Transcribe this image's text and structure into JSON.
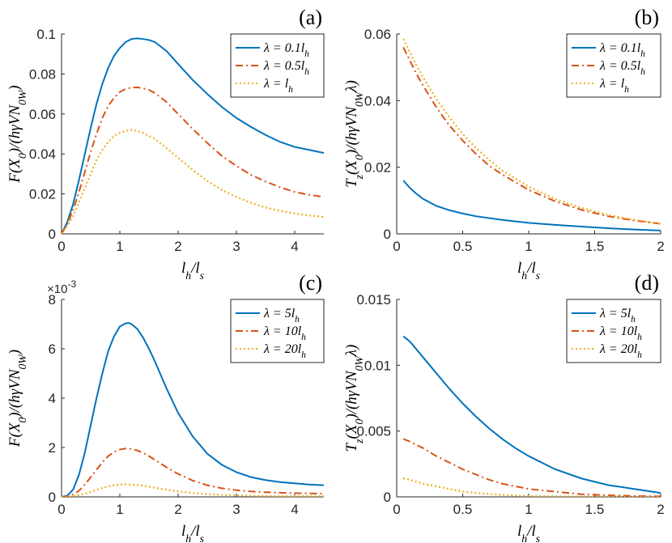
{
  "colors": {
    "blue": "#0072BD",
    "orange": "#D95319",
    "yellow": "#EDB120",
    "axis": "#262626"
  },
  "chart_data": [
    {
      "panel": "(a)",
      "type": "line",
      "xlabel": "l_h/l_s",
      "ylabel": "F(X_0)/(hγVN_0W)",
      "xlim": [
        0,
        4.5
      ],
      "ylim": [
        0,
        0.1
      ],
      "xticks": [
        "0",
        "1",
        "2",
        "3",
        "4"
      ],
      "yticks": [
        "0",
        "0.02",
        "0.04",
        "0.06",
        "0.08",
        "0.1"
      ],
      "exponent": "",
      "legend_position": "top-right",
      "series": [
        {
          "name": "λ = 0.1l_h",
          "color": "#0072BD",
          "dash": "solid",
          "x": [
            0,
            0.1,
            0.2,
            0.3,
            0.4,
            0.5,
            0.6,
            0.7,
            0.8,
            0.9,
            1.0,
            1.1,
            1.2,
            1.3,
            1.4,
            1.5,
            1.6,
            1.8,
            2.0,
            2.25,
            2.5,
            2.75,
            3.0,
            3.25,
            3.5,
            3.75,
            4.0,
            4.25,
            4.5
          ],
          "y": [
            0,
            0.006,
            0.015,
            0.027,
            0.04,
            0.053,
            0.065,
            0.075,
            0.083,
            0.089,
            0.093,
            0.096,
            0.0975,
            0.0978,
            0.0975,
            0.097,
            0.096,
            0.0915,
            0.085,
            0.077,
            0.07,
            0.0635,
            0.058,
            0.0535,
            0.0495,
            0.046,
            0.0435,
            0.042,
            0.0405
          ]
        },
        {
          "name": "λ = 0.5l_h",
          "color": "#D95319",
          "dash": "dashdot",
          "x": [
            0,
            0.1,
            0.2,
            0.3,
            0.4,
            0.5,
            0.6,
            0.7,
            0.8,
            0.9,
            1.0,
            1.1,
            1.2,
            1.3,
            1.4,
            1.5,
            1.6,
            1.8,
            2.0,
            2.25,
            2.5,
            2.75,
            3.0,
            3.25,
            3.5,
            3.75,
            4.0,
            4.25,
            4.5
          ],
          "y": [
            0,
            0.005,
            0.012,
            0.021,
            0.031,
            0.041,
            0.05,
            0.058,
            0.064,
            0.068,
            0.071,
            0.0725,
            0.0732,
            0.0733,
            0.0728,
            0.072,
            0.0705,
            0.066,
            0.06,
            0.0525,
            0.0455,
            0.039,
            0.034,
            0.0295,
            0.0262,
            0.0233,
            0.021,
            0.0195,
            0.0185
          ]
        },
        {
          "name": "λ = l_h",
          "color": "#EDB120",
          "dash": "dotted",
          "x": [
            0,
            0.1,
            0.2,
            0.3,
            0.4,
            0.5,
            0.6,
            0.7,
            0.8,
            0.9,
            1.0,
            1.1,
            1.2,
            1.3,
            1.4,
            1.5,
            1.6,
            1.8,
            2.0,
            2.25,
            2.5,
            2.75,
            3.0,
            3.25,
            3.5,
            3.75,
            4.0,
            4.25,
            4.5
          ],
          "y": [
            0,
            0.004,
            0.009,
            0.016,
            0.023,
            0.03,
            0.037,
            0.042,
            0.046,
            0.049,
            0.0505,
            0.0515,
            0.052,
            0.0515,
            0.0505,
            0.049,
            0.0475,
            0.043,
            0.038,
            0.032,
            0.0265,
            0.022,
            0.0185,
            0.0155,
            0.0132,
            0.0115,
            0.0102,
            0.0092,
            0.0085
          ]
        }
      ]
    },
    {
      "panel": "(b)",
      "type": "line",
      "xlabel": "l_h/l_s",
      "ylabel": "T_z(X_0)/(hγVN_0Wλ)",
      "xlim": [
        0,
        2
      ],
      "ylim": [
        0,
        0.06
      ],
      "xticks": [
        "0",
        "0.5",
        "1",
        "1.5",
        "2"
      ],
      "yticks": [
        "0",
        "0.02",
        "0.04",
        "0.06"
      ],
      "exponent": "",
      "legend_position": "top-right",
      "series": [
        {
          "name": "λ = 0.1l_h",
          "color": "#0072BD",
          "dash": "solid",
          "x": [
            0.05,
            0.1,
            0.15,
            0.2,
            0.3,
            0.4,
            0.5,
            0.6,
            0.8,
            1.0,
            1.2,
            1.4,
            1.6,
            1.8,
            2.0
          ],
          "y": [
            0.016,
            0.0138,
            0.012,
            0.0105,
            0.0084,
            0.0071,
            0.0061,
            0.0053,
            0.0042,
            0.0033,
            0.0027,
            0.0022,
            0.0017,
            0.0013,
            0.001
          ]
        },
        {
          "name": "λ = 0.5l_h",
          "color": "#D95319",
          "dash": "dashdot",
          "x": [
            0.05,
            0.1,
            0.15,
            0.2,
            0.3,
            0.4,
            0.5,
            0.6,
            0.7,
            0.8,
            1.0,
            1.2,
            1.4,
            1.6,
            1.8,
            2.0
          ],
          "y": [
            0.056,
            0.052,
            0.048,
            0.0445,
            0.038,
            0.0325,
            0.028,
            0.024,
            0.0205,
            0.0178,
            0.0132,
            0.0098,
            0.0072,
            0.0053,
            0.004,
            0.003
          ]
        },
        {
          "name": "λ = l_h",
          "color": "#EDB120",
          "dash": "dotted",
          "x": [
            0.05,
            0.1,
            0.15,
            0.2,
            0.3,
            0.4,
            0.5,
            0.6,
            0.7,
            0.8,
            1.0,
            1.2,
            1.4,
            1.6,
            1.8,
            2.0
          ],
          "y": [
            0.0585,
            0.0545,
            0.0505,
            0.047,
            0.0405,
            0.035,
            0.03,
            0.0258,
            0.0222,
            0.019,
            0.0142,
            0.0105,
            0.0078,
            0.0057,
            0.0042,
            0.0031
          ]
        }
      ]
    },
    {
      "panel": "(c)",
      "type": "line",
      "xlabel": "l_h/l_s",
      "ylabel": "F(X_0)/(hγVN_0W)",
      "xlim": [
        0,
        4.5
      ],
      "ylim": [
        0,
        8
      ],
      "xticks": [
        "0",
        "1",
        "2",
        "3",
        "4"
      ],
      "yticks": [
        "0",
        "2",
        "4",
        "6",
        "8"
      ],
      "exponent": "×10^{-3}",
      "legend_position": "top-right",
      "series": [
        {
          "name": "λ = 5l_h",
          "color": "#0072BD",
          "dash": "solid",
          "x": [
            0,
            0.1,
            0.2,
            0.3,
            0.4,
            0.5,
            0.6,
            0.7,
            0.8,
            0.9,
            1.0,
            1.1,
            1.15,
            1.2,
            1.3,
            1.4,
            1.5,
            1.6,
            1.8,
            2.0,
            2.25,
            2.5,
            2.75,
            3.0,
            3.25,
            3.5,
            3.75,
            4.0,
            4.25,
            4.5
          ],
          "y": [
            0,
            0.05,
            0.3,
            0.9,
            1.8,
            2.9,
            4.0,
            5.0,
            5.9,
            6.5,
            6.9,
            7.03,
            7.05,
            7.0,
            6.8,
            6.45,
            6.0,
            5.5,
            4.4,
            3.4,
            2.45,
            1.75,
            1.3,
            1.0,
            0.8,
            0.68,
            0.6,
            0.55,
            0.5,
            0.47
          ]
        },
        {
          "name": "λ = 10l_h",
          "color": "#D95319",
          "dash": "dashdot",
          "x": [
            0,
            0.1,
            0.2,
            0.3,
            0.4,
            0.5,
            0.6,
            0.7,
            0.8,
            0.9,
            1.0,
            1.1,
            1.2,
            1.3,
            1.4,
            1.5,
            1.6,
            1.8,
            2.0,
            2.25,
            2.5,
            2.75,
            3.0,
            3.25,
            3.5,
            3.75,
            4.0,
            4.25,
            4.5
          ],
          "y": [
            0,
            0.02,
            0.1,
            0.25,
            0.5,
            0.8,
            1.1,
            1.4,
            1.65,
            1.82,
            1.92,
            1.96,
            1.94,
            1.88,
            1.78,
            1.65,
            1.5,
            1.2,
            0.93,
            0.66,
            0.47,
            0.35,
            0.27,
            0.22,
            0.19,
            0.17,
            0.15,
            0.14,
            0.13
          ]
        },
        {
          "name": "λ = 20l_h",
          "color": "#EDB120",
          "dash": "dotted",
          "x": [
            0,
            0.1,
            0.2,
            0.3,
            0.4,
            0.5,
            0.6,
            0.7,
            0.8,
            0.9,
            1.0,
            1.1,
            1.2,
            1.3,
            1.4,
            1.5,
            1.6,
            1.8,
            2.0,
            2.25,
            2.5,
            2.75,
            3.0,
            3.25,
            3.5,
            3.75,
            4.0,
            4.25,
            4.5
          ],
          "y": [
            0,
            0.005,
            0.03,
            0.07,
            0.13,
            0.2,
            0.28,
            0.36,
            0.42,
            0.47,
            0.5,
            0.51,
            0.5,
            0.48,
            0.45,
            0.41,
            0.37,
            0.29,
            0.22,
            0.155,
            0.11,
            0.08,
            0.06,
            0.048,
            0.04,
            0.034,
            0.03,
            0.027,
            0.025
          ]
        }
      ]
    },
    {
      "panel": "(d)",
      "type": "line",
      "xlabel": "l_h/l_s",
      "ylabel": "T_z(X_0)/(hγVN_0Wλ)",
      "xlim": [
        0,
        2
      ],
      "ylim": [
        0,
        0.015
      ],
      "xticks": [
        "0",
        "0.5",
        "1",
        "1.5",
        "2"
      ],
      "yticks": [
        "0",
        "0.005",
        "0.01",
        "0.015"
      ],
      "exponent": "",
      "legend_position": "top-right",
      "series": [
        {
          "name": "λ = 5l_h",
          "color": "#0072BD",
          "dash": "solid",
          "x": [
            0.05,
            0.1,
            0.2,
            0.3,
            0.4,
            0.5,
            0.6,
            0.7,
            0.8,
            0.9,
            1.0,
            1.2,
            1.4,
            1.6,
            1.8,
            2.0
          ],
          "y": [
            0.0122,
            0.0118,
            0.0106,
            0.0094,
            0.0082,
            0.0071,
            0.0061,
            0.0052,
            0.0044,
            0.0037,
            0.0031,
            0.0021,
            0.0014,
            0.0009,
            0.0006,
            0.0003
          ]
        },
        {
          "name": "λ = 10l_h",
          "color": "#D95319",
          "dash": "dashdot",
          "x": [
            0.05,
            0.1,
            0.2,
            0.3,
            0.4,
            0.5,
            0.6,
            0.7,
            0.8,
            0.9,
            1.0,
            1.2,
            1.4,
            1.6,
            1.8,
            2.0
          ],
          "y": [
            0.0044,
            0.0042,
            0.0037,
            0.0031,
            0.0026,
            0.0021,
            0.0017,
            0.0013,
            0.001,
            0.0008,
            0.0006,
            0.0004,
            0.0002,
            0.00012,
            7e-05,
            4e-05
          ]
        },
        {
          "name": "λ = 20l_h",
          "color": "#EDB120",
          "dash": "dotted",
          "x": [
            0.05,
            0.1,
            0.2,
            0.3,
            0.4,
            0.5,
            0.6,
            0.7,
            0.8,
            0.9,
            1.0,
            1.2,
            1.4,
            1.6,
            1.8,
            2.0
          ],
          "y": [
            0.0014,
            0.0013,
            0.001,
            0.0008,
            0.0006,
            0.0004,
            0.0003,
            0.00022,
            0.00015,
            0.0001,
            7e-05,
            4e-05,
            2e-05,
            1e-05,
            5e-06,
            2e-06
          ]
        }
      ]
    }
  ]
}
